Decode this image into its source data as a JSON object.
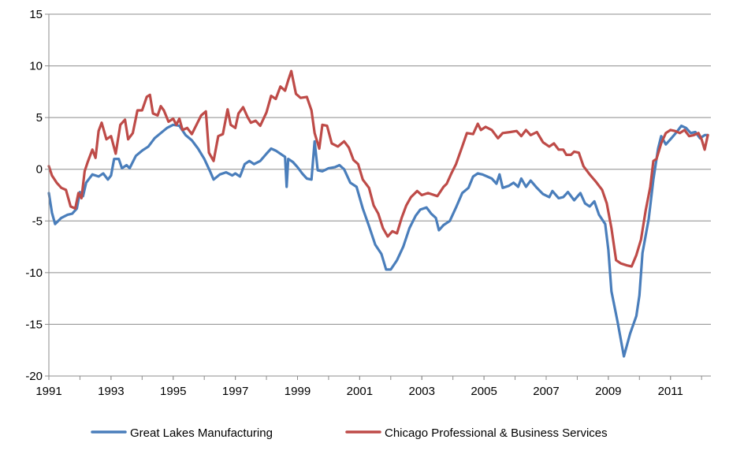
{
  "chart_data": {
    "type": "line",
    "title": "",
    "xlabel": "",
    "ylabel": "",
    "xlim": [
      1991,
      2012.3
    ],
    "ylim": [
      -20,
      15
    ],
    "yticks": [
      "15",
      "10",
      "5",
      "0",
      "-5",
      "-10",
      "-15",
      "-20"
    ],
    "xticks": [
      "1991",
      "1993",
      "1995",
      "1997",
      "1999",
      "2001",
      "2003",
      "2005",
      "2007",
      "2009",
      "2011"
    ],
    "grid": "horizontal",
    "legend_position": "bottom",
    "series": [
      {
        "name": "Great Lakes Manufacturing",
        "color": "#4a7ebb",
        "points": [
          [
            1991.0,
            -2.3
          ],
          [
            1991.1,
            -4.2
          ],
          [
            1991.2,
            -5.3
          ],
          [
            1991.4,
            -4.7
          ],
          [
            1991.6,
            -4.4
          ],
          [
            1991.75,
            -4.3
          ],
          [
            1991.9,
            -3.8
          ],
          [
            1992.0,
            -2.2
          ],
          [
            1992.1,
            -2.6
          ],
          [
            1992.2,
            -1.3
          ],
          [
            1992.4,
            -0.5
          ],
          [
            1992.6,
            -0.7
          ],
          [
            1992.75,
            -0.4
          ],
          [
            1992.9,
            -1.0
          ],
          [
            1993.0,
            -0.6
          ],
          [
            1993.1,
            1.0
          ],
          [
            1993.25,
            1.0
          ],
          [
            1993.35,
            0.1
          ],
          [
            1993.5,
            0.4
          ],
          [
            1993.6,
            0.1
          ],
          [
            1993.8,
            1.3
          ],
          [
            1994.0,
            1.8
          ],
          [
            1994.2,
            2.2
          ],
          [
            1994.4,
            3.0
          ],
          [
            1994.6,
            3.5
          ],
          [
            1994.8,
            4.0
          ],
          [
            1995.0,
            4.3
          ],
          [
            1995.2,
            4.2
          ],
          [
            1995.4,
            3.3
          ],
          [
            1995.6,
            2.8
          ],
          [
            1995.8,
            2.0
          ],
          [
            1996.0,
            1.0
          ],
          [
            1996.2,
            -0.3
          ],
          [
            1996.3,
            -1.0
          ],
          [
            1996.5,
            -0.5
          ],
          [
            1996.7,
            -0.3
          ],
          [
            1996.9,
            -0.6
          ],
          [
            1997.0,
            -0.4
          ],
          [
            1997.15,
            -0.7
          ],
          [
            1997.3,
            0.5
          ],
          [
            1997.45,
            0.8
          ],
          [
            1997.6,
            0.5
          ],
          [
            1997.8,
            0.8
          ],
          [
            1998.0,
            1.5
          ],
          [
            1998.15,
            2.0
          ],
          [
            1998.3,
            1.8
          ],
          [
            1998.5,
            1.4
          ],
          [
            1998.6,
            1.2
          ],
          [
            1998.65,
            -1.7
          ],
          [
            1998.7,
            1.0
          ],
          [
            1998.85,
            0.7
          ],
          [
            1999.0,
            0.2
          ],
          [
            1999.15,
            -0.4
          ],
          [
            1999.3,
            -0.9
          ],
          [
            1999.45,
            -1.0
          ],
          [
            1999.55,
            2.7
          ],
          [
            1999.65,
            -0.1
          ],
          [
            1999.8,
            -0.2
          ],
          [
            2000.0,
            0.1
          ],
          [
            2000.2,
            0.2
          ],
          [
            2000.35,
            0.4
          ],
          [
            2000.5,
            0.0
          ],
          [
            2000.7,
            -1.3
          ],
          [
            2000.9,
            -1.7
          ],
          [
            2001.1,
            -3.8
          ],
          [
            2001.3,
            -5.5
          ],
          [
            2001.5,
            -7.3
          ],
          [
            2001.7,
            -8.2
          ],
          [
            2001.85,
            -9.7
          ],
          [
            2002.0,
            -9.7
          ],
          [
            2002.2,
            -8.8
          ],
          [
            2002.4,
            -7.5
          ],
          [
            2002.6,
            -5.7
          ],
          [
            2002.8,
            -4.5
          ],
          [
            2002.95,
            -3.9
          ],
          [
            2003.15,
            -3.7
          ],
          [
            2003.3,
            -4.3
          ],
          [
            2003.45,
            -4.7
          ],
          [
            2003.55,
            -5.9
          ],
          [
            2003.7,
            -5.4
          ],
          [
            2003.9,
            -5.0
          ],
          [
            2004.1,
            -3.7
          ],
          [
            2004.3,
            -2.3
          ],
          [
            2004.5,
            -1.8
          ],
          [
            2004.65,
            -0.7
          ],
          [
            2004.8,
            -0.4
          ],
          [
            2004.95,
            -0.5
          ],
          [
            2005.1,
            -0.7
          ],
          [
            2005.25,
            -0.9
          ],
          [
            2005.4,
            -1.4
          ],
          [
            2005.5,
            -0.5
          ],
          [
            2005.6,
            -1.8
          ],
          [
            2005.8,
            -1.6
          ],
          [
            2005.95,
            -1.3
          ],
          [
            2006.1,
            -1.7
          ],
          [
            2006.2,
            -0.9
          ],
          [
            2006.35,
            -1.7
          ],
          [
            2006.5,
            -1.1
          ],
          [
            2006.7,
            -1.8
          ],
          [
            2006.9,
            -2.4
          ],
          [
            2007.1,
            -2.7
          ],
          [
            2007.2,
            -2.1
          ],
          [
            2007.4,
            -2.8
          ],
          [
            2007.55,
            -2.7
          ],
          [
            2007.7,
            -2.2
          ],
          [
            2007.9,
            -3.0
          ],
          [
            2008.1,
            -2.3
          ],
          [
            2008.25,
            -3.3
          ],
          [
            2008.4,
            -3.6
          ],
          [
            2008.55,
            -3.1
          ],
          [
            2008.7,
            -4.4
          ],
          [
            2008.9,
            -5.3
          ],
          [
            2009.0,
            -7.8
          ],
          [
            2009.1,
            -11.8
          ],
          [
            2009.3,
            -14.8
          ],
          [
            2009.5,
            -18.1
          ],
          [
            2009.7,
            -15.9
          ],
          [
            2009.9,
            -14.2
          ],
          [
            2010.0,
            -12.2
          ],
          [
            2010.1,
            -8.1
          ],
          [
            2010.3,
            -4.8
          ],
          [
            2010.45,
            -1.0
          ],
          [
            2010.6,
            2.0
          ],
          [
            2010.7,
            3.2
          ],
          [
            2010.85,
            2.4
          ],
          [
            2011.0,
            2.9
          ],
          [
            2011.2,
            3.6
          ],
          [
            2011.35,
            4.2
          ],
          [
            2011.5,
            4.0
          ],
          [
            2011.65,
            3.5
          ],
          [
            2011.8,
            3.6
          ],
          [
            2011.95,
            3.0
          ],
          [
            2012.1,
            3.3
          ],
          [
            2012.2,
            3.3
          ]
        ]
      },
      {
        "name": "Chicago Professional & Business Services",
        "color": "#be4b48",
        "points": [
          [
            1991.0,
            0.3
          ],
          [
            1991.1,
            -0.6
          ],
          [
            1991.25,
            -1.3
          ],
          [
            1991.4,
            -1.8
          ],
          [
            1991.55,
            -2.0
          ],
          [
            1991.7,
            -3.6
          ],
          [
            1991.85,
            -3.8
          ],
          [
            1991.95,
            -2.3
          ],
          [
            1992.05,
            -2.8
          ],
          [
            1992.15,
            -0.2
          ],
          [
            1992.25,
            0.7
          ],
          [
            1992.4,
            1.9
          ],
          [
            1992.5,
            1.1
          ],
          [
            1992.6,
            3.7
          ],
          [
            1992.7,
            4.5
          ],
          [
            1992.85,
            2.9
          ],
          [
            1993.0,
            3.2
          ],
          [
            1993.15,
            1.5
          ],
          [
            1993.3,
            4.3
          ],
          [
            1993.45,
            4.8
          ],
          [
            1993.55,
            2.9
          ],
          [
            1993.7,
            3.5
          ],
          [
            1993.85,
            5.7
          ],
          [
            1994.0,
            5.7
          ],
          [
            1994.15,
            7.0
          ],
          [
            1994.25,
            7.2
          ],
          [
            1994.35,
            5.4
          ],
          [
            1994.5,
            5.2
          ],
          [
            1994.6,
            6.1
          ],
          [
            1994.7,
            5.7
          ],
          [
            1994.85,
            4.6
          ],
          [
            1995.0,
            4.9
          ],
          [
            1995.1,
            4.3
          ],
          [
            1995.2,
            4.9
          ],
          [
            1995.3,
            3.8
          ],
          [
            1995.45,
            4.0
          ],
          [
            1995.6,
            3.4
          ],
          [
            1995.75,
            4.3
          ],
          [
            1995.9,
            5.2
          ],
          [
            1996.05,
            5.6
          ],
          [
            1996.15,
            1.6
          ],
          [
            1996.3,
            0.8
          ],
          [
            1996.45,
            3.2
          ],
          [
            1996.6,
            3.4
          ],
          [
            1996.75,
            5.8
          ],
          [
            1996.85,
            4.3
          ],
          [
            1997.0,
            4.0
          ],
          [
            1997.1,
            5.4
          ],
          [
            1997.25,
            6.0
          ],
          [
            1997.4,
            5.0
          ],
          [
            1997.5,
            4.5
          ],
          [
            1997.65,
            4.7
          ],
          [
            1997.8,
            4.2
          ],
          [
            1998.0,
            5.5
          ],
          [
            1998.15,
            7.1
          ],
          [
            1998.3,
            6.8
          ],
          [
            1998.45,
            8.0
          ],
          [
            1998.6,
            7.6
          ],
          [
            1998.7,
            8.6
          ],
          [
            1998.8,
            9.5
          ],
          [
            1998.95,
            7.3
          ],
          [
            1999.1,
            6.9
          ],
          [
            1999.3,
            7.0
          ],
          [
            1999.45,
            5.7
          ],
          [
            1999.55,
            3.5
          ],
          [
            1999.7,
            2.0
          ],
          [
            1999.8,
            4.3
          ],
          [
            1999.95,
            4.2
          ],
          [
            2000.1,
            2.5
          ],
          [
            2000.3,
            2.2
          ],
          [
            2000.5,
            2.7
          ],
          [
            2000.65,
            2.1
          ],
          [
            2000.8,
            0.9
          ],
          [
            2000.95,
            0.5
          ],
          [
            2001.1,
            -1.0
          ],
          [
            2001.3,
            -1.8
          ],
          [
            2001.45,
            -3.5
          ],
          [
            2001.6,
            -4.3
          ],
          [
            2001.75,
            -5.7
          ],
          [
            2001.9,
            -6.5
          ],
          [
            2002.05,
            -6.0
          ],
          [
            2002.2,
            -6.2
          ],
          [
            2002.35,
            -4.7
          ],
          [
            2002.5,
            -3.5
          ],
          [
            2002.65,
            -2.7
          ],
          [
            2002.85,
            -2.1
          ],
          [
            2003.0,
            -2.5
          ],
          [
            2003.2,
            -2.3
          ],
          [
            2003.5,
            -2.6
          ],
          [
            2003.7,
            -1.7
          ],
          [
            2003.8,
            -1.4
          ],
          [
            2003.95,
            -0.4
          ],
          [
            2004.1,
            0.5
          ],
          [
            2004.3,
            2.2
          ],
          [
            2004.45,
            3.5
          ],
          [
            2004.65,
            3.4
          ],
          [
            2004.8,
            4.4
          ],
          [
            2004.9,
            3.8
          ],
          [
            2005.05,
            4.1
          ],
          [
            2005.25,
            3.8
          ],
          [
            2005.45,
            3.0
          ],
          [
            2005.6,
            3.5
          ],
          [
            2005.85,
            3.6
          ],
          [
            2006.05,
            3.7
          ],
          [
            2006.2,
            3.2
          ],
          [
            2006.35,
            3.8
          ],
          [
            2006.5,
            3.3
          ],
          [
            2006.7,
            3.6
          ],
          [
            2006.9,
            2.6
          ],
          [
            2007.1,
            2.2
          ],
          [
            2007.25,
            2.5
          ],
          [
            2007.4,
            1.9
          ],
          [
            2007.55,
            1.9
          ],
          [
            2007.65,
            1.4
          ],
          [
            2007.8,
            1.4
          ],
          [
            2007.9,
            1.7
          ],
          [
            2008.05,
            1.6
          ],
          [
            2008.2,
            0.3
          ],
          [
            2008.4,
            -0.5
          ],
          [
            2008.6,
            -1.2
          ],
          [
            2008.8,
            -2.0
          ],
          [
            2008.95,
            -3.3
          ],
          [
            2009.1,
            -5.7
          ],
          [
            2009.25,
            -8.8
          ],
          [
            2009.4,
            -9.1
          ],
          [
            2009.6,
            -9.3
          ],
          [
            2009.75,
            -9.4
          ],
          [
            2009.9,
            -8.3
          ],
          [
            2010.05,
            -6.8
          ],
          [
            2010.2,
            -4.0
          ],
          [
            2010.35,
            -1.7
          ],
          [
            2010.45,
            0.8
          ],
          [
            2010.55,
            1.0
          ],
          [
            2010.7,
            2.5
          ],
          [
            2010.85,
            3.5
          ],
          [
            2011.0,
            3.8
          ],
          [
            2011.15,
            3.7
          ],
          [
            2011.3,
            3.5
          ],
          [
            2011.45,
            3.8
          ],
          [
            2011.6,
            3.2
          ],
          [
            2011.75,
            3.3
          ],
          [
            2011.9,
            3.5
          ],
          [
            2012.0,
            2.9
          ],
          [
            2012.1,
            1.9
          ],
          [
            2012.2,
            3.3
          ]
        ]
      }
    ]
  }
}
